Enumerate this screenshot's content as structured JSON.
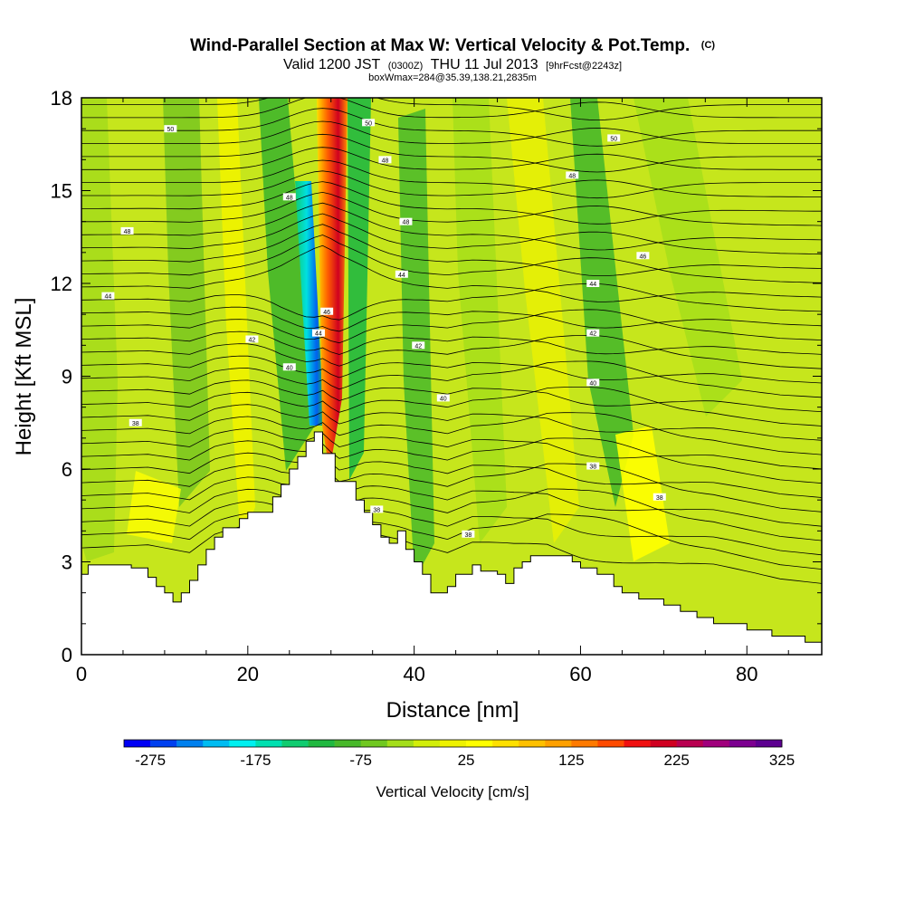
{
  "chart_data": {
    "type": "heatmap",
    "title_main": "Wind-Parallel Section at Max W: Vertical Velocity & Pot.Temp.",
    "title_mark": "(C)",
    "subtitle_a": "Valid 1200 JST",
    "subtitle_b": "(0300Z)",
    "subtitle_c": "THU 11 Jul 2013",
    "subtitle_d": "[9hrFcst@2243z]",
    "subtitle_2": "boxWmax=284@35.39,138.21,2835m",
    "xlabel": "Distance [nm]",
    "ylabel": "Height [Kft MSL]",
    "xlim": [
      0,
      89
    ],
    "ylim": [
      0,
      18
    ],
    "x_ticks": [
      0,
      20,
      40,
      60,
      80
    ],
    "y_ticks": [
      0,
      3,
      6,
      9,
      12,
      15,
      18
    ],
    "colorbar": {
      "label": "Vertical Velocity [cm/s]",
      "ticks": [
        "-275",
        "-175",
        "-75",
        "25",
        "125",
        "225",
        "325"
      ],
      "min": -300,
      "max": 325,
      "step": 25,
      "colors": [
        "#0000f5",
        "#0040f0",
        "#0080ee",
        "#00bcf2",
        "#00f0f0",
        "#00e0b0",
        "#10cc70",
        "#20b840",
        "#48b82a",
        "#70c820",
        "#a4de1a",
        "#d2ee0a",
        "#eef200",
        "#ffff00",
        "#ffe000",
        "#ffc000",
        "#ffa000",
        "#ff7a00",
        "#ff4a00",
        "#f01010",
        "#d00020",
        "#b80050",
        "#a0007c",
        "#7c0090",
        "#5c0090"
      ]
    },
    "isentrope_labels": [
      {
        "text": "50",
        "x": 10.7,
        "y": 17.0
      },
      {
        "text": "50",
        "x": 34.5,
        "y": 17.2
      },
      {
        "text": "50",
        "x": 64.0,
        "y": 16.7
      },
      {
        "text": "48",
        "x": 36.5,
        "y": 16.0
      },
      {
        "text": "48",
        "x": 59.0,
        "y": 15.5
      },
      {
        "text": "48",
        "x": 25.0,
        "y": 14.8
      },
      {
        "text": "48",
        "x": 5.5,
        "y": 13.7
      },
      {
        "text": "48",
        "x": 39.0,
        "y": 14.0
      },
      {
        "text": "46",
        "x": 67.5,
        "y": 12.9
      },
      {
        "text": "44",
        "x": 38.5,
        "y": 12.3
      },
      {
        "text": "44",
        "x": 61.5,
        "y": 12.0
      },
      {
        "text": "44",
        "x": 3.2,
        "y": 11.6
      },
      {
        "text": "46",
        "x": 29.5,
        "y": 11.1
      },
      {
        "text": "44",
        "x": 28.5,
        "y": 10.4
      },
      {
        "text": "42",
        "x": 20.5,
        "y": 10.2
      },
      {
        "text": "42",
        "x": 40.5,
        "y": 10.0
      },
      {
        "text": "42",
        "x": 61.5,
        "y": 10.4
      },
      {
        "text": "40",
        "x": 25.0,
        "y": 9.3
      },
      {
        "text": "40",
        "x": 61.5,
        "y": 8.8
      },
      {
        "text": "40",
        "x": 43.5,
        "y": 8.3
      },
      {
        "text": "38",
        "x": 6.5,
        "y": 7.5
      },
      {
        "text": "38",
        "x": 61.5,
        "y": 6.1
      },
      {
        "text": "38",
        "x": 69.5,
        "y": 5.1
      },
      {
        "text": "38",
        "x": 35.5,
        "y": 4.7
      },
      {
        "text": "38",
        "x": 46.5,
        "y": 3.9
      }
    ]
  }
}
